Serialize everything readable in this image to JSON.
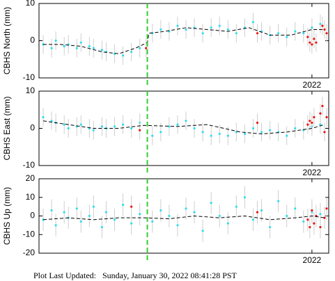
{
  "chart_data": [
    {
      "type": "scatter",
      "ylabel": "CBHS North (mm)",
      "xlim": [
        2015.5,
        2022.4
      ],
      "xticks": [
        2022
      ],
      "ylim": [
        -10,
        10
      ],
      "yticks": [
        -10,
        0,
        10
      ],
      "vline": {
        "x": 2018.08,
        "color": "#33cc33"
      },
      "series": [
        {
          "mode": "points",
          "color": "#33ddee",
          "error": 2.5,
          "x": [
            2015.6,
            2015.8,
            2015.9,
            2016.1,
            2016.2,
            2016.4,
            2016.5,
            2016.7,
            2016.8,
            2017.0,
            2017.1,
            2017.3,
            2017.5,
            2017.7,
            2017.9,
            2018.2,
            2018.4,
            2018.6,
            2018.8,
            2019.0,
            2019.2,
            2019.4,
            2019.6,
            2019.8,
            2020.0,
            2020.2,
            2020.4,
            2020.6,
            2020.8,
            2021.0,
            2021.2,
            2021.4,
            2021.6,
            2021.8,
            2022.0,
            2022.2
          ],
          "values": [
            -1,
            -2,
            0,
            -1.5,
            -1,
            -2,
            -0.5,
            -1.5,
            -2,
            -2.5,
            -3,
            -3.5,
            -4,
            -3,
            -2,
            2,
            3,
            2.5,
            4,
            3,
            3.5,
            2,
            3.5,
            4,
            3,
            2,
            3.5,
            5,
            2.5,
            1.5,
            2,
            1,
            2.5,
            2,
            3.5,
            4.5
          ]
        },
        {
          "mode": "points",
          "color": "#ee1111",
          "error": 2.5,
          "x": [
            2018.05,
            2020.7,
            2021.9,
            2021.95,
            2022.0,
            2022.05,
            2022.1,
            2022.25,
            2022.3,
            2022.35
          ],
          "values": [
            -2,
            2,
            1,
            -0.5,
            -1,
            0.5,
            -0.5,
            4,
            3,
            2
          ]
        },
        {
          "mode": "line",
          "color": "#000000",
          "x": [
            2015.6,
            2016.0,
            2016.5,
            2017.0,
            2017.4,
            2017.8,
            2018.08,
            2018.12,
            2018.5,
            2019.0,
            2019.5,
            2020.0,
            2020.5,
            2021.0,
            2021.5,
            2022.0,
            2022.3
          ],
          "values": [
            -1,
            -1,
            -1.5,
            -3,
            -3.5,
            -2,
            -0.5,
            2,
            2.5,
            3.5,
            3,
            2.5,
            3.5,
            1.5,
            1.5,
            3,
            3
          ]
        }
      ]
    },
    {
      "type": "scatter",
      "ylabel": "CBHS East (mm)",
      "xlim": [
        2015.5,
        2022.4
      ],
      "xticks": [
        2022
      ],
      "ylim": [
        -10,
        10
      ],
      "yticks": [
        -10,
        0,
        10
      ],
      "vline": {
        "x": 2018.08,
        "color": "#33cc33"
      },
      "series": [
        {
          "mode": "points",
          "color": "#33ddee",
          "error": 2.5,
          "x": [
            2015.6,
            2015.8,
            2015.9,
            2016.1,
            2016.2,
            2016.4,
            2016.5,
            2016.7,
            2016.8,
            2017.0,
            2017.1,
            2017.3,
            2017.5,
            2017.7,
            2017.9,
            2018.2,
            2018.4,
            2018.6,
            2018.8,
            2019.0,
            2019.2,
            2019.4,
            2019.6,
            2019.8,
            2020.0,
            2020.2,
            2020.4,
            2020.6,
            2020.8,
            2021.0,
            2021.2,
            2021.4,
            2021.6,
            2021.8,
            2022.0,
            2022.2
          ],
          "values": [
            3,
            2,
            1.5,
            1,
            0,
            0.5,
            1,
            0,
            -0.5,
            0.5,
            0,
            0.5,
            1,
            0,
            1.5,
            -2,
            -1,
            0.5,
            1,
            2,
            0,
            -1,
            -2,
            -1.5,
            -2,
            -1,
            -1.5,
            0,
            -1,
            -0.5,
            -1,
            -2,
            0,
            -0.5,
            0.5,
            1
          ]
        },
        {
          "mode": "points",
          "color": "#ee1111",
          "error": 2.5,
          "x": [
            2017.9,
            2020.7,
            2021.9,
            2021.95,
            2022.0,
            2022.05,
            2022.2,
            2022.25,
            2022.3,
            2022.35
          ],
          "values": [
            -0.5,
            1.5,
            1,
            2,
            1.5,
            3,
            4,
            6,
            -1,
            3
          ]
        },
        {
          "mode": "line",
          "color": "#000000",
          "x": [
            2015.6,
            2016.2,
            2016.8,
            2017.4,
            2018.0,
            2018.8,
            2019.5,
            2020.3,
            2020.8,
            2021.4,
            2022.0,
            2022.3
          ],
          "values": [
            2,
            1,
            0,
            0,
            0.8,
            0.5,
            1,
            -1,
            -1.5,
            -1,
            0,
            1
          ]
        }
      ]
    },
    {
      "type": "scatter",
      "ylabel": "CBHS Up (mm)",
      "xlim": [
        2015.5,
        2022.4
      ],
      "xticks": [
        2022
      ],
      "ylim": [
        -20,
        20
      ],
      "yticks": [
        -20,
        -10,
        0,
        10,
        20
      ],
      "vline": {
        "x": 2018.08,
        "color": "#33cc33"
      },
      "series": [
        {
          "mode": "points",
          "color": "#33ddee",
          "error": 6,
          "x": [
            2015.6,
            2015.8,
            2015.9,
            2016.1,
            2016.2,
            2016.4,
            2016.5,
            2016.7,
            2016.8,
            2017.0,
            2017.1,
            2017.3,
            2017.5,
            2017.7,
            2017.9,
            2018.2,
            2018.4,
            2018.6,
            2018.8,
            2019.0,
            2019.2,
            2019.4,
            2019.6,
            2019.8,
            2020.0,
            2020.2,
            2020.4,
            2020.6,
            2020.8,
            2021.0,
            2021.2,
            2021.4,
            2021.6,
            2021.8,
            2022.0,
            2022.2
          ],
          "values": [
            -2,
            3,
            -5,
            2,
            -1,
            4,
            -3,
            0,
            5,
            -6,
            2,
            -2,
            6,
            -4,
            1,
            -3,
            3,
            0,
            -5,
            4,
            2,
            -8,
            7,
            0,
            -4,
            5,
            10,
            -2,
            3,
            -6,
            8,
            0,
            4,
            -3,
            2,
            1
          ]
        },
        {
          "mode": "points",
          "color": "#ee1111",
          "error": 6,
          "x": [
            2017.7,
            2020.7,
            2021.9,
            2021.95,
            2022.0,
            2022.05,
            2022.1,
            2022.2,
            2022.3,
            2022.35
          ],
          "values": [
            5,
            2,
            -2,
            -6,
            3,
            -4,
            0,
            -6,
            -1,
            4
          ]
        },
        {
          "mode": "line",
          "color": "#000000",
          "x": [
            2015.6,
            2016.2,
            2016.8,
            2017.4,
            2018.0,
            2018.6,
            2019.2,
            2019.8,
            2020.4,
            2021.0,
            2021.6,
            2022.0,
            2022.3
          ],
          "values": [
            -2,
            -1,
            -2,
            -1,
            -1,
            -1.5,
            0,
            -1,
            0,
            -2,
            -1,
            0,
            -1
          ]
        }
      ]
    }
  ],
  "footer": "Plot Last Updated:   Sunday, January 30, 2022 08:41:28 PST"
}
